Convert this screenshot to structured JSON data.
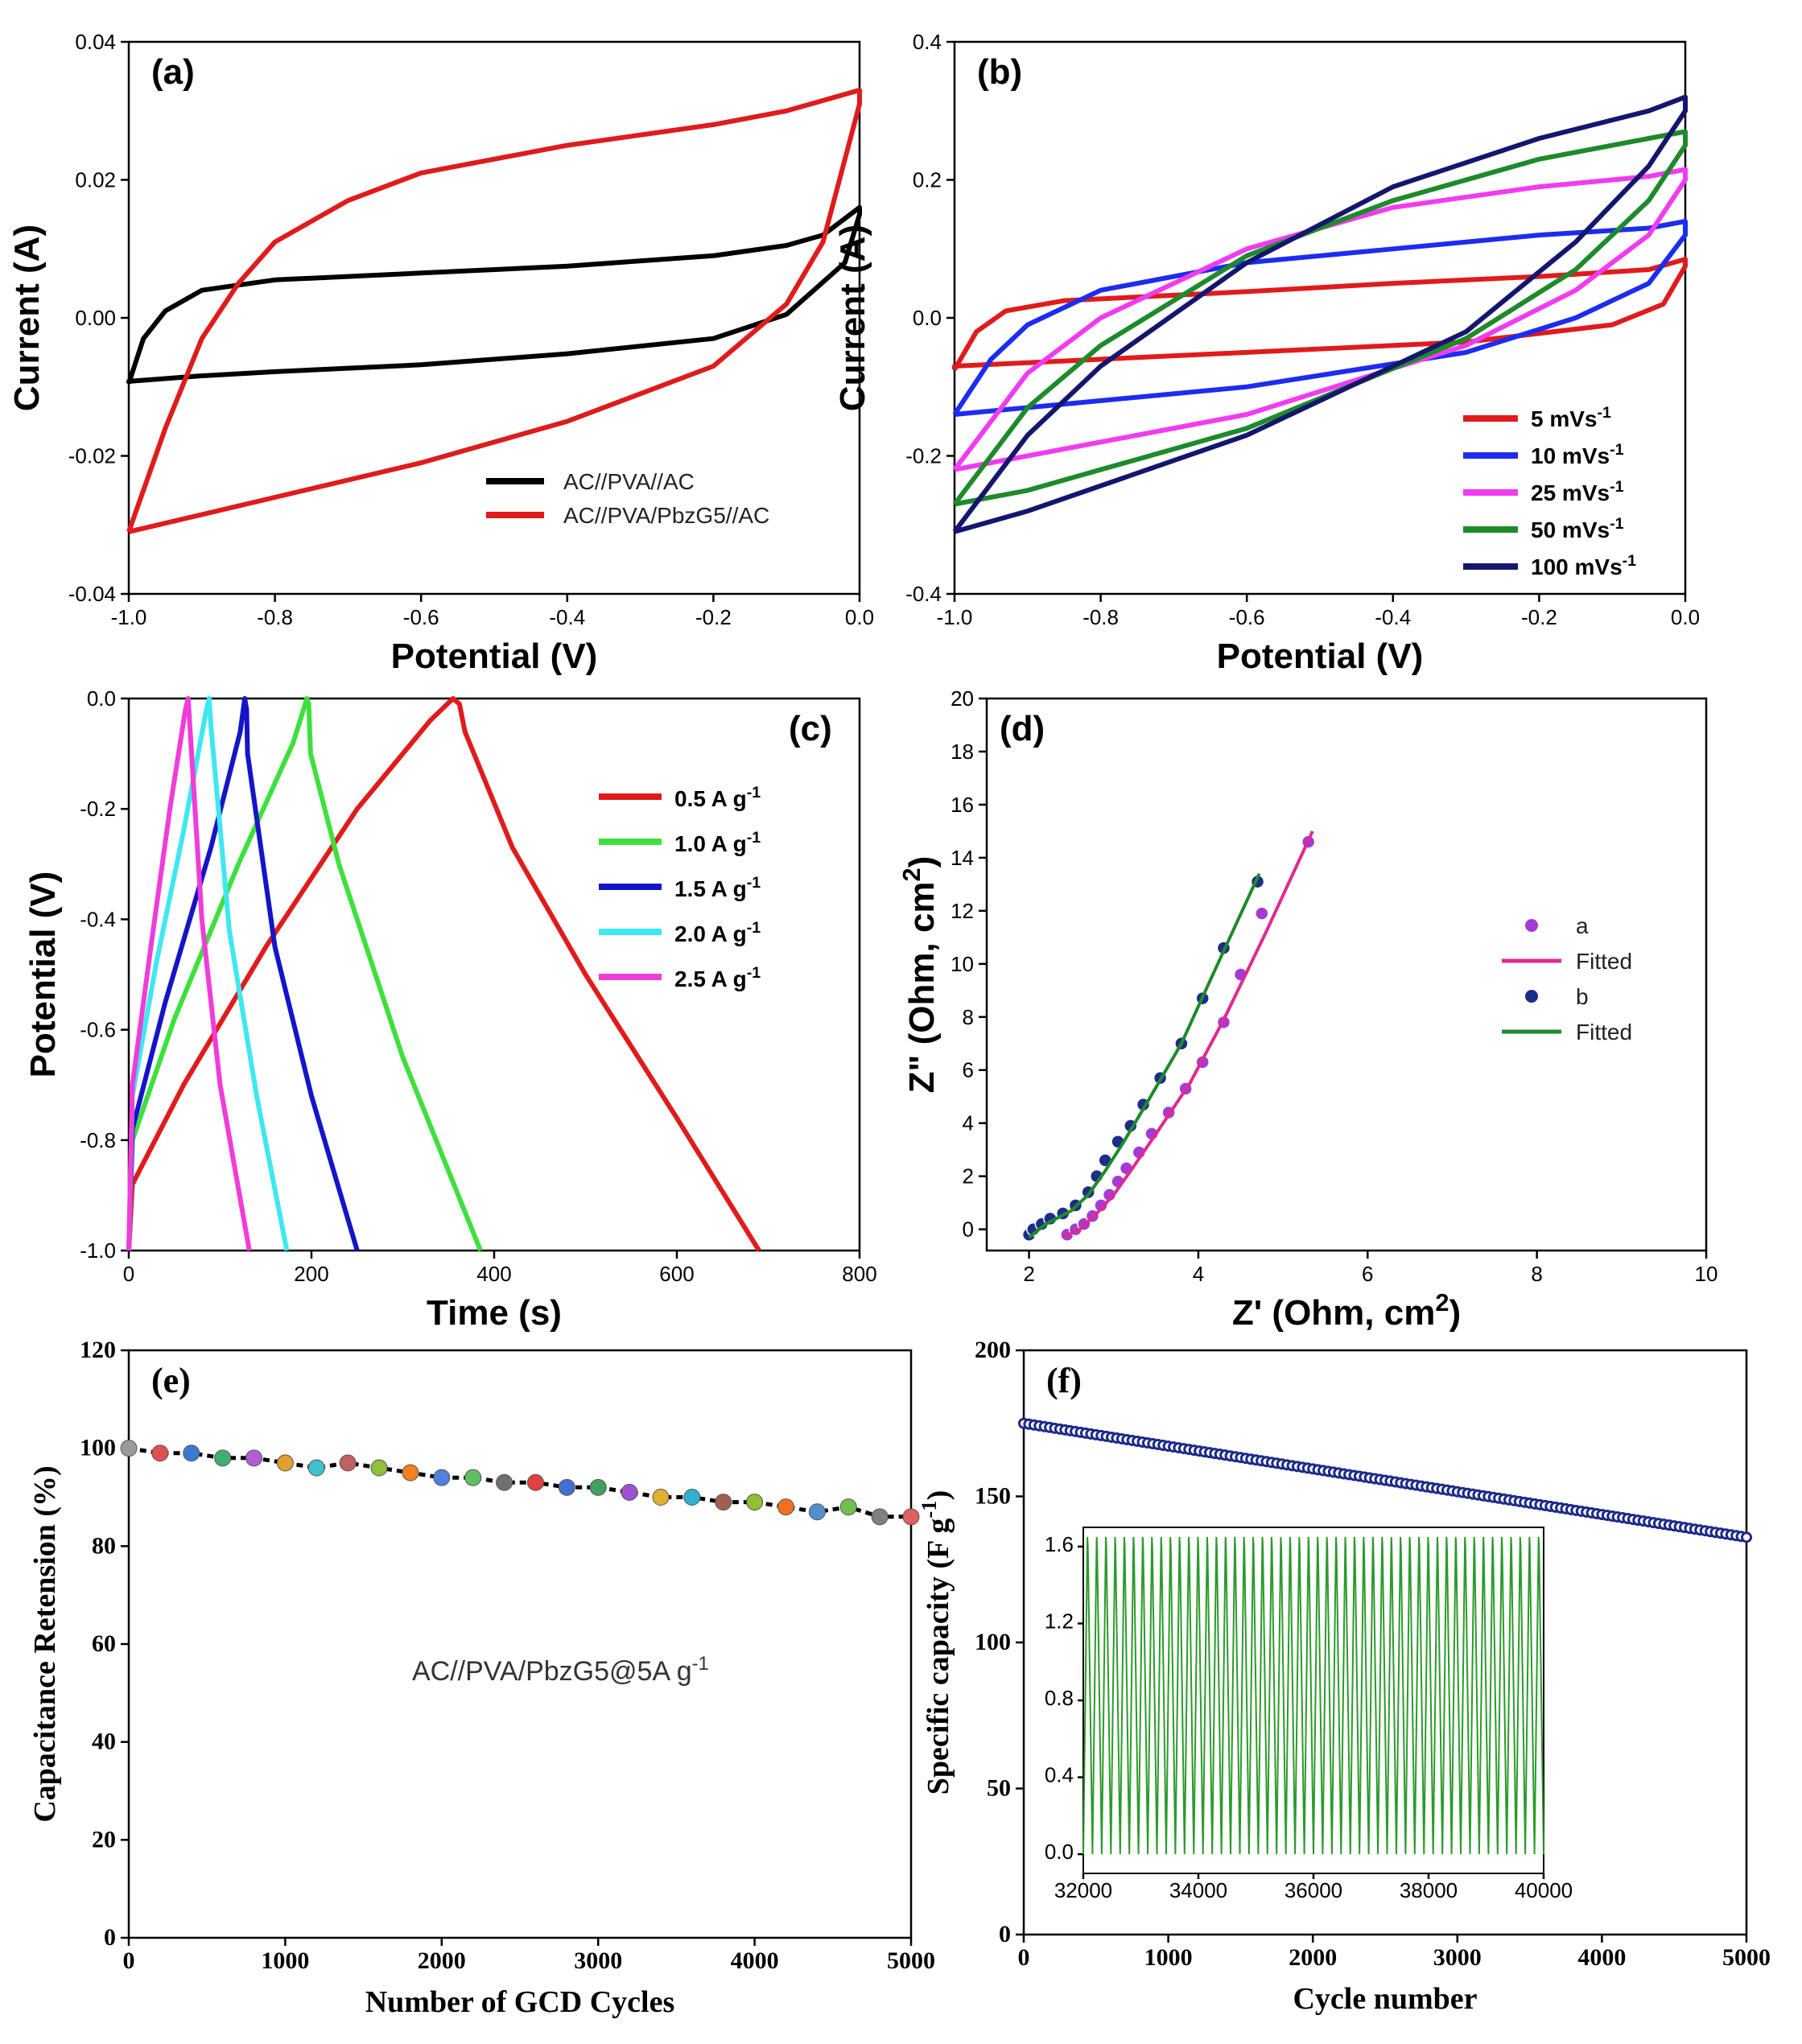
{
  "chart_data": [
    {
      "id": "a",
      "type": "line",
      "panel_label": "(a)",
      "xlabel": "Potential (V)",
      "ylabel": "Current (A)",
      "xlim": [
        -1.0,
        0.0
      ],
      "ylim": [
        -0.04,
        0.04
      ],
      "xticks": [
        -1.0,
        -0.8,
        -0.6,
        -0.4,
        -0.2,
        0.0
      ],
      "xtick_labels": [
        "-1.0",
        "-0.8",
        "-0.6",
        "-0.4",
        "-0.2",
        "0.0"
      ],
      "yticks": [
        -0.04,
        -0.02,
        0.0,
        0.02,
        0.04
      ],
      "ytick_labels": [
        "-0.04",
        "-0.02",
        "0.00",
        "0.02",
        "0.04"
      ],
      "legend_position": "bottom-right",
      "series": [
        {
          "name": "AC//PVA//AC",
          "color": "#000000",
          "x": [
            -1.0,
            -0.98,
            -0.95,
            -0.9,
            -0.8,
            -0.6,
            -0.4,
            -0.2,
            -0.1,
            -0.05,
            0.0,
            0.0,
            -0.02,
            -0.1,
            -0.2,
            -0.4,
            -0.6,
            -0.8,
            -0.9,
            -1.0,
            -1.0
          ],
          "y": [
            -0.0095,
            -0.003,
            0.001,
            0.004,
            0.0055,
            0.0065,
            0.0075,
            0.009,
            0.0105,
            0.012,
            0.016,
            0.015,
            0.008,
            0.0005,
            -0.003,
            -0.0052,
            -0.0068,
            -0.0078,
            -0.0084,
            -0.0092,
            -0.0095
          ]
        },
        {
          "name": "AC//PVA/PbzG5//AC",
          "color": "#e01b1b",
          "x": [
            -1.0,
            -0.95,
            -0.9,
            -0.85,
            -0.8,
            -0.7,
            -0.6,
            -0.4,
            -0.2,
            -0.1,
            0.0,
            0.0,
            -0.05,
            -0.1,
            -0.2,
            -0.4,
            -0.6,
            -0.8,
            -1.0,
            -1.0
          ],
          "y": [
            -0.031,
            -0.016,
            -0.003,
            0.005,
            0.011,
            0.017,
            0.021,
            0.025,
            0.028,
            0.03,
            0.033,
            0.031,
            0.011,
            0.002,
            -0.007,
            -0.015,
            -0.021,
            -0.026,
            -0.031,
            -0.031
          ]
        }
      ]
    },
    {
      "id": "b",
      "type": "line",
      "panel_label": "(b)",
      "xlabel": "Potential (V)",
      "ylabel": "Current (A)",
      "xlim": [
        -1.0,
        0.0
      ],
      "ylim": [
        -0.4,
        0.4
      ],
      "xticks": [
        -1.0,
        -0.8,
        -0.6,
        -0.4,
        -0.2,
        0.0
      ],
      "xtick_labels": [
        "-1.0",
        "-0.8",
        "-0.6",
        "-0.4",
        "-0.2",
        "0.0"
      ],
      "yticks": [
        -0.4,
        -0.2,
        0.0,
        0.2,
        0.4
      ],
      "ytick_labels": [
        "-0.4",
        "-0.2",
        "0.0",
        "0.2",
        "0.4"
      ],
      "legend_position": "bottom-right",
      "series": [
        {
          "name": "5 mVs",
          "sup": "-1",
          "color": "#e01b1b",
          "x": [
            -1.0,
            -0.97,
            -0.93,
            -0.85,
            -0.6,
            -0.4,
            -0.2,
            -0.05,
            0.0,
            0.0,
            -0.03,
            -0.1,
            -0.3,
            -0.6,
            -0.9,
            -1.0,
            -1.0
          ],
          "y": [
            -0.075,
            -0.02,
            0.01,
            0.025,
            0.038,
            0.05,
            0.06,
            0.07,
            0.085,
            0.075,
            0.02,
            -0.01,
            -0.035,
            -0.05,
            -0.065,
            -0.07,
            -0.075
          ]
        },
        {
          "name": "10 mVs",
          "sup": "-1",
          "color": "#1c2cf0",
          "x": [
            -1.0,
            -0.95,
            -0.9,
            -0.8,
            -0.6,
            -0.4,
            -0.2,
            -0.05,
            0.0,
            0.0,
            -0.05,
            -0.15,
            -0.3,
            -0.6,
            -0.9,
            -1.0,
            -1.0
          ],
          "y": [
            -0.14,
            -0.06,
            -0.01,
            0.04,
            0.08,
            0.1,
            0.12,
            0.13,
            0.14,
            0.12,
            0.05,
            0.0,
            -0.05,
            -0.1,
            -0.13,
            -0.14,
            -0.14
          ]
        },
        {
          "name": "25 mVs",
          "sup": "-1",
          "color": "#f03cf0",
          "x": [
            -1.0,
            -0.95,
            -0.9,
            -0.8,
            -0.6,
            -0.4,
            -0.2,
            -0.05,
            0.0,
            0.0,
            -0.05,
            -0.15,
            -0.3,
            -0.6,
            -0.9,
            -1.0,
            -1.0
          ],
          "y": [
            -0.22,
            -0.15,
            -0.08,
            0.0,
            0.1,
            0.16,
            0.19,
            0.205,
            0.215,
            0.2,
            0.12,
            0.04,
            -0.04,
            -0.14,
            -0.2,
            -0.22,
            -0.22
          ]
        },
        {
          "name": "50 mVs",
          "sup": "-1",
          "color": "#1e8a2a",
          "x": [
            -1.0,
            -0.95,
            -0.9,
            -0.8,
            -0.6,
            -0.4,
            -0.2,
            -0.05,
            0.0,
            0.0,
            -0.05,
            -0.15,
            -0.3,
            -0.6,
            -0.9,
            -1.0,
            -1.0
          ],
          "y": [
            -0.27,
            -0.2,
            -0.13,
            -0.04,
            0.09,
            0.17,
            0.23,
            0.26,
            0.27,
            0.25,
            0.17,
            0.07,
            -0.03,
            -0.16,
            -0.25,
            -0.27,
            -0.27
          ]
        },
        {
          "name": "100 mVs",
          "sup": "-1",
          "color": "#14166e",
          "x": [
            -1.0,
            -0.95,
            -0.9,
            -0.8,
            -0.6,
            -0.4,
            -0.2,
            -0.05,
            0.0,
            0.0,
            -0.05,
            -0.15,
            -0.3,
            -0.6,
            -0.9,
            -1.0,
            -1.0
          ],
          "y": [
            -0.31,
            -0.24,
            -0.17,
            -0.07,
            0.08,
            0.19,
            0.26,
            0.3,
            0.32,
            0.3,
            0.22,
            0.11,
            -0.02,
            -0.17,
            -0.28,
            -0.31,
            -0.31
          ]
        }
      ]
    },
    {
      "id": "c",
      "type": "line",
      "panel_label": "(c)",
      "xlabel": "Time (s)",
      "ylabel": "Potential (V)",
      "xlim": [
        0,
        800
      ],
      "ylim": [
        -1.0,
        0.0
      ],
      "xticks": [
        0,
        200,
        400,
        600,
        800
      ],
      "xtick_labels": [
        "0",
        "200",
        "400",
        "600",
        "800"
      ],
      "yticks": [
        -1.0,
        -0.8,
        -0.6,
        -0.4,
        -0.2,
        0.0
      ],
      "ytick_labels": [
        "-1.0",
        "-0.8",
        "-0.6",
        "-0.4",
        "-0.2",
        "0.0"
      ],
      "legend_position": "top-right",
      "series": [
        {
          "name": "0.5 A g",
          "sup": "-1",
          "color": "#e01b1b",
          "x": [
            0,
            4,
            60,
            150,
            250,
            330,
            355,
            362,
            368,
            420,
            500,
            600,
            690
          ],
          "y": [
            -1.0,
            -0.88,
            -0.7,
            -0.45,
            -0.2,
            -0.04,
            0.0,
            -0.01,
            -0.06,
            -0.27,
            -0.5,
            -0.76,
            -1.0
          ]
        },
        {
          "name": "1.0 A g",
          "sup": "-1",
          "color": "#3ee03e",
          "x": [
            0,
            4,
            50,
            120,
            180,
            195,
            197,
            199,
            230,
            300,
            385
          ],
          "y": [
            -1.0,
            -0.8,
            -0.58,
            -0.3,
            -0.08,
            0.0,
            -0.01,
            -0.1,
            -0.3,
            -0.65,
            -1.0
          ]
        },
        {
          "name": "1.5 A g",
          "sup": "-1",
          "color": "#1414c8",
          "x": [
            0,
            4,
            40,
            90,
            122,
            127,
            129,
            130,
            160,
            200,
            250
          ],
          "y": [
            -1.0,
            -0.78,
            -0.55,
            -0.27,
            -0.06,
            0.0,
            -0.02,
            -0.1,
            -0.45,
            -0.72,
            -1.0
          ]
        },
        {
          "name": "2.0 A g",
          "sup": "-1",
          "color": "#3ee8f0",
          "x": [
            0,
            4,
            30,
            60,
            85,
            88,
            90,
            110,
            140,
            173
          ],
          "y": [
            -1.0,
            -0.72,
            -0.48,
            -0.24,
            -0.02,
            0.0,
            -0.05,
            -0.42,
            -0.72,
            -1.0
          ]
        },
        {
          "name": "2.5 A g",
          "sup": "-1",
          "color": "#f03cd8",
          "x": [
            0,
            4,
            25,
            45,
            62,
            65,
            80,
            100,
            132
          ],
          "y": [
            -1.0,
            -0.7,
            -0.44,
            -0.2,
            -0.02,
            0.0,
            -0.4,
            -0.7,
            -1.0
          ]
        }
      ]
    },
    {
      "id": "d",
      "type": "scatter",
      "panel_label": "(d)",
      "xlabel": "Z' (Ohm, cm",
      "xlabel_sup": "2",
      "xlabel_end": ")",
      "ylabel": "Z\" (Ohm, cm",
      "ylabel_sup": "2",
      "ylabel_end": ")",
      "xlim": [
        1.5,
        10
      ],
      "ylim": [
        -0.8,
        20
      ],
      "xticks": [
        2,
        4,
        6,
        8,
        10
      ],
      "xtick_labels": [
        "2",
        "4",
        "6",
        "8",
        "10"
      ],
      "yticks": [
        0,
        2,
        4,
        6,
        8,
        10,
        12,
        14,
        16,
        18,
        20
      ],
      "ytick_labels": [
        "0",
        "2",
        "4",
        "6",
        "8",
        "10",
        "12",
        "14",
        "16",
        "18",
        "20"
      ],
      "legend_position": "right",
      "series": [
        {
          "name": "a",
          "kind": "points",
          "color": "#a23cd6",
          "x": [
            2.45,
            2.55,
            2.65,
            2.75,
            2.85,
            2.95,
            3.05,
            3.15,
            3.3,
            3.45,
            3.65,
            3.85,
            4.05,
            4.3,
            4.5,
            4.75,
            5.3
          ],
          "y": [
            -0.2,
            0.0,
            0.2,
            0.5,
            0.9,
            1.3,
            1.8,
            2.3,
            2.9,
            3.6,
            4.4,
            5.3,
            6.3,
            7.8,
            9.6,
            11.9,
            14.6
          ]
        },
        {
          "name": "Fitted",
          "kind": "line",
          "color": "#e02a90",
          "x": [
            2.4,
            2.6,
            2.8,
            3.0,
            3.2,
            3.5,
            3.9,
            4.3,
            4.8,
            5.35
          ],
          "y": [
            -0.3,
            0.0,
            0.6,
            1.3,
            2.2,
            3.6,
            5.5,
            7.9,
            11.2,
            15.0
          ]
        },
        {
          "name": "b",
          "kind": "points",
          "color": "#1d2d8a",
          "x": [
            2.0,
            2.05,
            2.15,
            2.25,
            2.4,
            2.55,
            2.7,
            2.8,
            2.9,
            3.05,
            3.2,
            3.35,
            3.55,
            3.8,
            4.05,
            4.3,
            4.7
          ],
          "y": [
            -0.2,
            0.0,
            0.2,
            0.4,
            0.6,
            0.9,
            1.4,
            2.0,
            2.6,
            3.3,
            3.9,
            4.7,
            5.7,
            7.0,
            8.7,
            10.6,
            13.1
          ]
        },
        {
          "name": "Fitted",
          "kind": "line",
          "color": "#1e8a2a",
          "x": [
            2.0,
            2.2,
            2.5,
            2.7,
            2.9,
            3.1,
            3.4,
            3.8,
            4.2,
            4.72
          ],
          "y": [
            -0.3,
            0.2,
            0.7,
            1.3,
            2.2,
            3.2,
            4.8,
            7.0,
            9.8,
            13.4
          ]
        }
      ]
    },
    {
      "id": "e",
      "type": "scatter",
      "panel_label": "(e)",
      "xlabel": "Number of GCD Cycles",
      "ylabel": "Capacitance Retension (%)",
      "xlim": [
        0,
        5000
      ],
      "ylim": [
        0,
        120
      ],
      "xticks": [
        0,
        1000,
        2000,
        3000,
        4000,
        5000
      ],
      "xtick_labels": [
        "0",
        "1000",
        "2000",
        "3000",
        "4000",
        "5000"
      ],
      "yticks": [
        0,
        20,
        40,
        60,
        80,
        100,
        120
      ],
      "ytick_labels": [
        "0",
        "20",
        "40",
        "60",
        "80",
        "100",
        "120"
      ],
      "annotation": "AC//PVA/PbzG5@5A g",
      "annotation_sup": "-1",
      "series": [
        {
          "name": "Capacitance retention",
          "x": [
            0,
            200,
            400,
            600,
            800,
            1000,
            1200,
            1400,
            1600,
            1800,
            2000,
            2200,
            2400,
            2600,
            2800,
            3000,
            3200,
            3400,
            3600,
            3800,
            4000,
            4200,
            4400,
            4600,
            4800,
            5000
          ],
          "y": [
            100,
            99,
            99,
            98,
            98,
            97,
            96,
            97,
            96,
            95,
            94,
            94,
            93,
            93,
            92,
            92,
            91,
            90,
            90,
            89,
            89,
            88,
            87,
            88,
            86,
            86
          ],
          "colors": [
            "#9a9a9a",
            "#e05050",
            "#3a7ad0",
            "#40b070",
            "#b060d0",
            "#e0a030",
            "#40c0d0",
            "#c06060",
            "#90c040",
            "#f08020",
            "#5080e0",
            "#60c060",
            "#707070",
            "#e04040",
            "#4070d0",
            "#40a060",
            "#a050d0",
            "#e0b030",
            "#30b0d0",
            "#a06050",
            "#90c030",
            "#f07020",
            "#5090d0",
            "#70c050",
            "#808080",
            "#e06060"
          ]
        }
      ]
    },
    {
      "id": "f",
      "type": "line",
      "panel_label": "(f)",
      "xlabel": "Cycle number",
      "ylabel": "Specific capacity (F g",
      "ylabel_sup": "-1",
      "ylabel_end": ")",
      "xlim": [
        0,
        5000
      ],
      "ylim": [
        0,
        200
      ],
      "xticks": [
        0,
        1000,
        2000,
        3000,
        4000,
        5000
      ],
      "xtick_labels": [
        "0",
        "1000",
        "2000",
        "3000",
        "4000",
        "5000"
      ],
      "yticks": [
        0,
        50,
        100,
        150,
        200
      ],
      "ytick_labels": [
        "0",
        "50",
        "100",
        "150",
        "200"
      ],
      "series": [
        {
          "name": "Specific capacity",
          "color": "#1d2a8a",
          "x": [
            0,
            5000
          ],
          "y": [
            175,
            136
          ]
        }
      ],
      "inset": {
        "type": "line",
        "xlim": [
          32000,
          40000
        ],
        "ylim": [
          -0.1,
          1.7
        ],
        "xticks": [
          32000,
          34000,
          36000,
          38000,
          40000
        ],
        "xtick_labels": [
          "32000",
          "34000",
          "36000",
          "38000",
          "40000"
        ],
        "yticks": [
          0.0,
          0.4,
          0.8,
          1.2,
          1.6
        ],
        "ytick_labels": [
          "0.0",
          "0.4",
          "0.8",
          "1.2",
          "1.6"
        ],
        "color": "#2c9a2c",
        "cycles": 50,
        "vmin": 0.0,
        "vmax": 1.65
      }
    }
  ]
}
